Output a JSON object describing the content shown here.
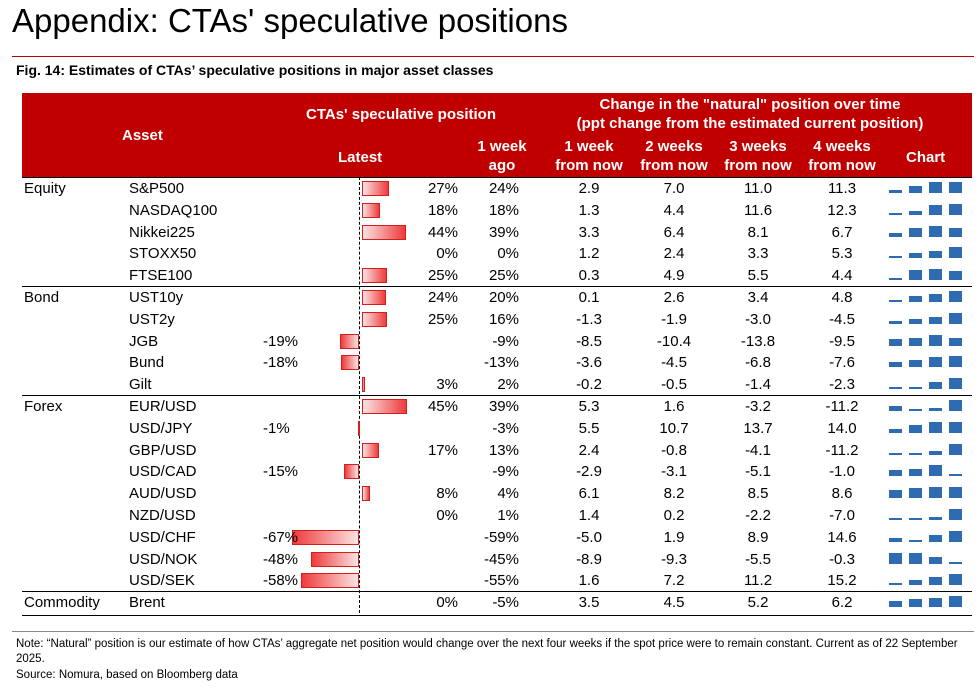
{
  "page": {
    "title": "Appendix: CTAs' speculative positions",
    "figure_caption": "Fig. 14: Estimates of CTAs’ speculative positions in major asset classes",
    "note": "Note: “Natural” position is our estimate of how CTAs’ aggregate net position would change over the next four weeks if the spot price were to remain constant. Current as of 22 September 2025.",
    "source": "Source: Nomura, based on Bloomberg data"
  },
  "header": {
    "asset": "Asset",
    "cta_position": "CTAs' speculative position",
    "latest": "Latest",
    "week_ago": "1 week ago",
    "change_title": "Change in the \"natural\" position over time",
    "change_sub": "(ppt change from the estimated current position)",
    "w1": "1 week from now",
    "w2": "2 weeks from now",
    "w3": "3 weeks from now",
    "w4": "4 weeks from now",
    "chart": "Chart"
  },
  "colors": {
    "header_bg": "#c00000",
    "bar_red": "#ee3b3b",
    "spark_blue": "#2e6bb0"
  },
  "rows": [
    {
      "group": "Equity",
      "name": "S&P500",
      "latest": "27%",
      "latest_value": 27,
      "week_ago": "24%",
      "w1": "2.9",
      "w2": "7.0",
      "w3": "11.0",
      "w4": "11.3",
      "v": [
        2.9,
        7.0,
        11.0,
        11.3
      ]
    },
    {
      "group": "",
      "name": "NASDAQ100",
      "latest": "18%",
      "latest_value": 18,
      "week_ago": "18%",
      "w1": "1.3",
      "w2": "4.4",
      "w3": "11.6",
      "w4": "12.3",
      "v": [
        1.3,
        4.4,
        11.6,
        12.3
      ]
    },
    {
      "group": "",
      "name": "Nikkei225",
      "latest": "44%",
      "latest_value": 44,
      "week_ago": "39%",
      "w1": "3.3",
      "w2": "6.4",
      "w3": "8.1",
      "w4": "6.7",
      "v": [
        3.3,
        6.4,
        8.1,
        6.7
      ]
    },
    {
      "group": "",
      "name": "STOXX50",
      "latest": "0%",
      "latest_value": 0,
      "week_ago": "0%",
      "w1": "1.2",
      "w2": "2.4",
      "w3": "3.3",
      "w4": "5.3",
      "v": [
        1.2,
        2.4,
        3.3,
        5.3
      ]
    },
    {
      "group": "",
      "name": "FTSE100",
      "latest": "25%",
      "latest_value": 25,
      "week_ago": "25%",
      "w1": "0.3",
      "w2": "4.9",
      "w3": "5.5",
      "w4": "4.4",
      "v": [
        0.3,
        4.9,
        5.5,
        4.4
      ]
    },
    {
      "group": "Bond",
      "name": "UST10y",
      "latest": "24%",
      "latest_value": 24,
      "week_ago": "20%",
      "w1": "0.1",
      "w2": "2.6",
      "w3": "3.4",
      "w4": "4.8",
      "v": [
        0.1,
        2.6,
        3.4,
        4.8
      ]
    },
    {
      "group": "",
      "name": "UST2y",
      "latest": "25%",
      "latest_value": 25,
      "week_ago": "16%",
      "w1": "-1.3",
      "w2": "-1.9",
      "w3": "-3.0",
      "w4": "-4.5",
      "v": [
        -1.3,
        -1.9,
        -3.0,
        -4.5
      ]
    },
    {
      "group": "",
      "name": "JGB",
      "latest": "-19%",
      "latest_value": -19,
      "week_ago": "-9%",
      "w1": "-8.5",
      "w2": "-10.4",
      "w3": "-13.8",
      "w4": "-9.5",
      "v": [
        -8.5,
        -10.4,
        -13.8,
        -9.5
      ]
    },
    {
      "group": "",
      "name": "Bund",
      "latest": "-18%",
      "latest_value": -18,
      "week_ago": "-13%",
      "w1": "-3.6",
      "w2": "-4.5",
      "w3": "-6.8",
      "w4": "-7.6",
      "v": [
        -3.6,
        -4.5,
        -6.8,
        -7.6
      ]
    },
    {
      "group": "",
      "name": "Gilt",
      "latest": "3%",
      "latest_value": 3,
      "week_ago": "2%",
      "w1": "-0.2",
      "w2": "-0.5",
      "w3": "-1.4",
      "w4": "-2.3",
      "v": [
        -0.2,
        -0.5,
        -1.4,
        -2.3
      ]
    },
    {
      "group": "Forex",
      "name": "EUR/USD",
      "latest": "45%",
      "latest_value": 45,
      "week_ago": "39%",
      "w1": "5.3",
      "w2": "1.6",
      "w3": "-3.2",
      "w4": "-11.2",
      "v": [
        5.3,
        1.6,
        -3.2,
        -11.2
      ]
    },
    {
      "group": "",
      "name": "USD/JPY",
      "latest": "-1%",
      "latest_value": -1,
      "week_ago": "-3%",
      "w1": "5.5",
      "w2": "10.7",
      "w3": "13.7",
      "w4": "14.0",
      "v": [
        5.5,
        10.7,
        13.7,
        14.0
      ]
    },
    {
      "group": "",
      "name": "GBP/USD",
      "latest": "17%",
      "latest_value": 17,
      "week_ago": "13%",
      "w1": "2.4",
      "w2": "-0.8",
      "w3": "-4.1",
      "w4": "-11.2",
      "v": [
        2.4,
        -0.8,
        -4.1,
        -11.2
      ]
    },
    {
      "group": "",
      "name": "USD/CAD",
      "latest": "-15%",
      "latest_value": -15,
      "week_ago": "-9%",
      "w1": "-2.9",
      "w2": "-3.1",
      "w3": "-5.1",
      "w4": "-1.0",
      "v": [
        -2.9,
        -3.1,
        -5.1,
        -1.0
      ]
    },
    {
      "group": "",
      "name": "AUD/USD",
      "latest": "8%",
      "latest_value": 8,
      "week_ago": "4%",
      "w1": "6.1",
      "w2": "8.2",
      "w3": "8.5",
      "w4": "8.6",
      "v": [
        6.1,
        8.2,
        8.5,
        8.6
      ]
    },
    {
      "group": "",
      "name": "NZD/USD",
      "latest": "0%",
      "latest_value": 0,
      "week_ago": "1%",
      "w1": "1.4",
      "w2": "0.2",
      "w3": "-2.2",
      "w4": "-7.0",
      "v": [
        1.4,
        0.2,
        -2.2,
        -7.0
      ]
    },
    {
      "group": "",
      "name": "USD/CHF",
      "latest": "-67%",
      "latest_value": -67,
      "week_ago": "-59%",
      "w1": "-5.0",
      "w2": "1.9",
      "w3": "8.9",
      "w4": "14.6",
      "v": [
        -5.0,
        1.9,
        8.9,
        14.6
      ]
    },
    {
      "group": "",
      "name": "USD/NOK",
      "latest": "-48%",
      "latest_value": -48,
      "week_ago": "-45%",
      "w1": "-8.9",
      "w2": "-9.3",
      "w3": "-5.5",
      "w4": "-0.3",
      "v": [
        -8.9,
        -9.3,
        -5.5,
        -0.3
      ]
    },
    {
      "group": "",
      "name": "USD/SEK",
      "latest": "-58%",
      "latest_value": -58,
      "week_ago": "-55%",
      "w1": "1.6",
      "w2": "7.2",
      "w3": "11.2",
      "w4": "15.2",
      "v": [
        1.6,
        7.2,
        11.2,
        15.2
      ]
    },
    {
      "group": "Commodity",
      "name": "Brent",
      "latest": "0%",
      "latest_value": 0,
      "week_ago": "-5%",
      "w1": "3.5",
      "w2": "4.5",
      "w3": "5.2",
      "w4": "6.2",
      "v": [
        3.5,
        4.5,
        5.2,
        6.2
      ]
    }
  ]
}
